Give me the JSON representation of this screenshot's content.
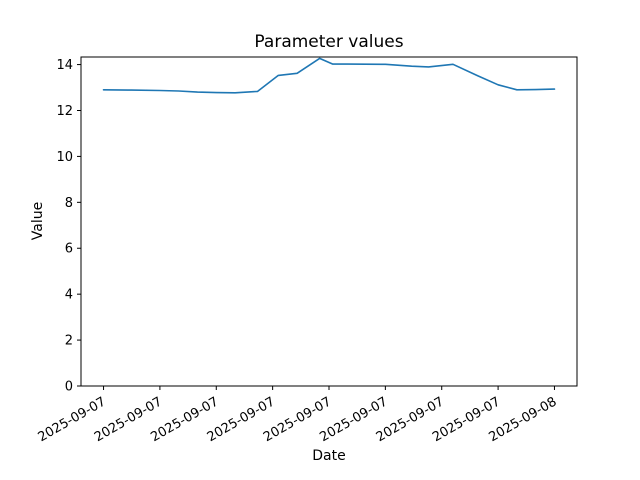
{
  "figure": {
    "background_color": "#ffffff",
    "frame_color": "#000000"
  },
  "chart_data": {
    "type": "line",
    "title": "Parameter values",
    "xlabel": "Date",
    "ylabel": "Value",
    "x_tick_labels": [
      "2025-09-07",
      "2025-09-07",
      "2025-09-07",
      "2025-09-07",
      "2025-09-07",
      "2025-09-07",
      "2025-09-07",
      "2025-09-07",
      "2025-09-08"
    ],
    "x_tick_hours": [
      0,
      3,
      6,
      9,
      12,
      15,
      18,
      21,
      24
    ],
    "x_tick_rotation_deg": 30,
    "xlim_hours": [
      -1.2,
      25.2
    ],
    "y_ticks": [
      0,
      2,
      4,
      6,
      8,
      10,
      12,
      14
    ],
    "ylim": [
      0,
      14.33
    ],
    "grid": false,
    "legend": false,
    "color": "#1f77b4",
    "series": [
      {
        "name": "value",
        "x_hours": [
          0,
          1.5,
          3,
          4,
          5,
          6,
          7,
          8.2,
          9.3,
          10.3,
          11.5,
          12.2,
          13,
          15,
          16.4,
          17.3,
          18.6,
          19.9,
          21,
          22,
          23,
          24
        ],
        "values": [
          12.9,
          12.89,
          12.87,
          12.85,
          12.8,
          12.78,
          12.77,
          12.83,
          13.53,
          13.62,
          14.27,
          14.02,
          14.02,
          14.01,
          13.93,
          13.9,
          14.01,
          13.52,
          13.12,
          12.9,
          12.91,
          12.93
        ]
      }
    ]
  }
}
